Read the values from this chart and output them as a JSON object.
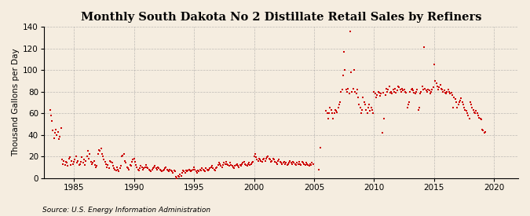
{
  "title": "Monthly South Dakota No 2 Distillate Retail Sales by Refiners",
  "ylabel": "Thousand Gallons per Day",
  "source": "Source: U.S. Energy Information Administration",
  "xlim": [
    1982.5,
    2022.0
  ],
  "ylim": [
    0,
    140
  ],
  "yticks": [
    0,
    20,
    40,
    60,
    80,
    100,
    120,
    140
  ],
  "xticks": [
    1985,
    1990,
    1995,
    2000,
    2005,
    2010,
    2015,
    2020
  ],
  "marker_color": "#cc0000",
  "marker_size": 4,
  "background_color": "#f5ede0",
  "grid_color": "#999999",
  "title_fontsize": 10.5,
  "label_fontsize": 7.5,
  "tick_fontsize": 7.5,
  "data_points": [
    [
      1983.0,
      63
    ],
    [
      1983.08,
      58
    ],
    [
      1983.17,
      53
    ],
    [
      1983.25,
      44
    ],
    [
      1983.33,
      37
    ],
    [
      1983.42,
      42
    ],
    [
      1983.5,
      45
    ],
    [
      1983.58,
      40
    ],
    [
      1983.67,
      43
    ],
    [
      1983.75,
      36
    ],
    [
      1983.83,
      38
    ],
    [
      1983.92,
      46
    ],
    [
      1984.0,
      17
    ],
    [
      1984.08,
      13
    ],
    [
      1984.17,
      16
    ],
    [
      1984.25,
      12
    ],
    [
      1984.33,
      15
    ],
    [
      1984.42,
      14
    ],
    [
      1984.5,
      11
    ],
    [
      1984.58,
      18
    ],
    [
      1984.67,
      19
    ],
    [
      1984.75,
      12
    ],
    [
      1984.83,
      16
    ],
    [
      1984.92,
      13
    ],
    [
      1985.0,
      15
    ],
    [
      1985.08,
      17
    ],
    [
      1985.17,
      20
    ],
    [
      1985.25,
      14
    ],
    [
      1985.33,
      16
    ],
    [
      1985.42,
      12
    ],
    [
      1985.5,
      13
    ],
    [
      1985.58,
      15
    ],
    [
      1985.67,
      19
    ],
    [
      1985.75,
      14
    ],
    [
      1985.83,
      17
    ],
    [
      1985.92,
      12
    ],
    [
      1986.0,
      16
    ],
    [
      1986.08,
      20
    ],
    [
      1986.17,
      25
    ],
    [
      1986.25,
      18
    ],
    [
      1986.33,
      22
    ],
    [
      1986.42,
      15
    ],
    [
      1986.5,
      13
    ],
    [
      1986.58,
      14
    ],
    [
      1986.67,
      16
    ],
    [
      1986.75,
      12
    ],
    [
      1986.83,
      10
    ],
    [
      1986.92,
      11
    ],
    [
      1987.0,
      22
    ],
    [
      1987.08,
      26
    ],
    [
      1987.17,
      25
    ],
    [
      1987.25,
      27
    ],
    [
      1987.33,
      22
    ],
    [
      1987.42,
      20
    ],
    [
      1987.5,
      17
    ],
    [
      1987.58,
      15
    ],
    [
      1987.67,
      13
    ],
    [
      1987.75,
      10
    ],
    [
      1987.83,
      12
    ],
    [
      1987.92,
      9
    ],
    [
      1988.0,
      16
    ],
    [
      1988.08,
      15
    ],
    [
      1988.17,
      14
    ],
    [
      1988.25,
      11
    ],
    [
      1988.33,
      9
    ],
    [
      1988.42,
      8
    ],
    [
      1988.5,
      7
    ],
    [
      1988.58,
      10
    ],
    [
      1988.67,
      8
    ],
    [
      1988.75,
      6
    ],
    [
      1988.83,
      9
    ],
    [
      1988.92,
      11
    ],
    [
      1989.0,
      20
    ],
    [
      1989.08,
      21
    ],
    [
      1989.17,
      22
    ],
    [
      1989.25,
      16
    ],
    [
      1989.33,
      14
    ],
    [
      1989.42,
      10
    ],
    [
      1989.5,
      9
    ],
    [
      1989.58,
      8
    ],
    [
      1989.67,
      12
    ],
    [
      1989.75,
      11
    ],
    [
      1989.83,
      15
    ],
    [
      1989.92,
      17
    ],
    [
      1990.0,
      18
    ],
    [
      1990.08,
      15
    ],
    [
      1990.17,
      12
    ],
    [
      1990.25,
      10
    ],
    [
      1990.33,
      8
    ],
    [
      1990.42,
      7
    ],
    [
      1990.5,
      9
    ],
    [
      1990.58,
      11
    ],
    [
      1990.67,
      10
    ],
    [
      1990.75,
      8
    ],
    [
      1990.83,
      9
    ],
    [
      1990.92,
      10
    ],
    [
      1991.0,
      12
    ],
    [
      1991.08,
      10
    ],
    [
      1991.17,
      9
    ],
    [
      1991.25,
      8
    ],
    [
      1991.33,
      7
    ],
    [
      1991.42,
      6
    ],
    [
      1991.5,
      8
    ],
    [
      1991.58,
      9
    ],
    [
      1991.67,
      10
    ],
    [
      1991.75,
      11
    ],
    [
      1991.83,
      9
    ],
    [
      1991.92,
      8
    ],
    [
      1992.0,
      10
    ],
    [
      1992.08,
      9
    ],
    [
      1992.17,
      8
    ],
    [
      1992.25,
      7
    ],
    [
      1992.33,
      6
    ],
    [
      1992.42,
      7
    ],
    [
      1992.5,
      8
    ],
    [
      1992.58,
      9
    ],
    [
      1992.67,
      10
    ],
    [
      1992.75,
      8
    ],
    [
      1992.83,
      7
    ],
    [
      1992.92,
      6
    ],
    [
      1993.0,
      8
    ],
    [
      1993.08,
      7
    ],
    [
      1993.17,
      6
    ],
    [
      1993.25,
      5
    ],
    [
      1993.33,
      7
    ],
    [
      1993.42,
      6
    ],
    [
      1993.5,
      1
    ],
    [
      1993.58,
      0
    ],
    [
      1993.67,
      2
    ],
    [
      1993.75,
      1
    ],
    [
      1993.83,
      3
    ],
    [
      1993.92,
      2
    ],
    [
      1994.0,
      5
    ],
    [
      1994.08,
      7
    ],
    [
      1994.17,
      6
    ],
    [
      1994.25,
      5
    ],
    [
      1994.33,
      7
    ],
    [
      1994.42,
      6
    ],
    [
      1994.5,
      7
    ],
    [
      1994.58,
      8
    ],
    [
      1994.67,
      7
    ],
    [
      1994.75,
      6
    ],
    [
      1994.83,
      7
    ],
    [
      1994.92,
      8
    ],
    [
      1995.0,
      10
    ],
    [
      1995.08,
      8
    ],
    [
      1995.17,
      6
    ],
    [
      1995.25,
      5
    ],
    [
      1995.33,
      7
    ],
    [
      1995.42,
      6
    ],
    [
      1995.5,
      8
    ],
    [
      1995.58,
      7
    ],
    [
      1995.67,
      9
    ],
    [
      1995.75,
      8
    ],
    [
      1995.83,
      7
    ],
    [
      1995.92,
      6
    ],
    [
      1996.0,
      9
    ],
    [
      1996.08,
      8
    ],
    [
      1996.17,
      7
    ],
    [
      1996.25,
      8
    ],
    [
      1996.33,
      9
    ],
    [
      1996.42,
      10
    ],
    [
      1996.5,
      11
    ],
    [
      1996.58,
      9
    ],
    [
      1996.67,
      8
    ],
    [
      1996.75,
      7
    ],
    [
      1996.83,
      9
    ],
    [
      1996.92,
      10
    ],
    [
      1997.0,
      12
    ],
    [
      1997.08,
      14
    ],
    [
      1997.17,
      13
    ],
    [
      1997.25,
      11
    ],
    [
      1997.33,
      10
    ],
    [
      1997.42,
      12
    ],
    [
      1997.5,
      14
    ],
    [
      1997.58,
      13
    ],
    [
      1997.67,
      15
    ],
    [
      1997.75,
      13
    ],
    [
      1997.83,
      12
    ],
    [
      1997.92,
      11
    ],
    [
      1998.0,
      14
    ],
    [
      1998.08,
      12
    ],
    [
      1998.17,
      11
    ],
    [
      1998.25,
      10
    ],
    [
      1998.33,
      9
    ],
    [
      1998.42,
      11
    ],
    [
      1998.5,
      12
    ],
    [
      1998.58,
      13
    ],
    [
      1998.67,
      11
    ],
    [
      1998.75,
      10
    ],
    [
      1998.83,
      12
    ],
    [
      1998.92,
      11
    ],
    [
      1999.0,
      13
    ],
    [
      1999.08,
      14
    ],
    [
      1999.17,
      15
    ],
    [
      1999.25,
      13
    ],
    [
      1999.33,
      12
    ],
    [
      1999.42,
      11
    ],
    [
      1999.5,
      13
    ],
    [
      1999.58,
      14
    ],
    [
      1999.67,
      12
    ],
    [
      1999.75,
      13
    ],
    [
      1999.83,
      14
    ],
    [
      1999.92,
      15
    ],
    [
      2000.0,
      20
    ],
    [
      2000.08,
      22
    ],
    [
      2000.17,
      19
    ],
    [
      2000.25,
      17
    ],
    [
      2000.33,
      16
    ],
    [
      2000.42,
      18
    ],
    [
      2000.5,
      17
    ],
    [
      2000.58,
      16
    ],
    [
      2000.67,
      15
    ],
    [
      2000.75,
      17
    ],
    [
      2000.83,
      18
    ],
    [
      2000.92,
      16
    ],
    [
      2001.0,
      18
    ],
    [
      2001.08,
      19
    ],
    [
      2001.17,
      20
    ],
    [
      2001.25,
      18
    ],
    [
      2001.33,
      17
    ],
    [
      2001.42,
      15
    ],
    [
      2001.5,
      16
    ],
    [
      2001.58,
      18
    ],
    [
      2001.67,
      17
    ],
    [
      2001.75,
      15
    ],
    [
      2001.83,
      14
    ],
    [
      2001.92,
      13
    ],
    [
      2002.0,
      16
    ],
    [
      2002.08,
      17
    ],
    [
      2002.17,
      15
    ],
    [
      2002.25,
      14
    ],
    [
      2002.33,
      13
    ],
    [
      2002.42,
      14
    ],
    [
      2002.5,
      15
    ],
    [
      2002.58,
      13
    ],
    [
      2002.67,
      14
    ],
    [
      2002.75,
      12
    ],
    [
      2002.83,
      13
    ],
    [
      2002.92,
      14
    ],
    [
      2003.0,
      16
    ],
    [
      2003.08,
      14
    ],
    [
      2003.17,
      13
    ],
    [
      2003.25,
      15
    ],
    [
      2003.33,
      14
    ],
    [
      2003.42,
      13
    ],
    [
      2003.5,
      12
    ],
    [
      2003.58,
      14
    ],
    [
      2003.67,
      13
    ],
    [
      2003.75,
      15
    ],
    [
      2003.83,
      13
    ],
    [
      2003.92,
      12
    ],
    [
      2004.0,
      15
    ],
    [
      2004.08,
      14
    ],
    [
      2004.17,
      13
    ],
    [
      2004.25,
      12
    ],
    [
      2004.33,
      14
    ],
    [
      2004.42,
      13
    ],
    [
      2004.5,
      12
    ],
    [
      2004.58,
      11
    ],
    [
      2004.67,
      13
    ],
    [
      2004.75,
      12
    ],
    [
      2004.83,
      14
    ],
    [
      2004.92,
      13
    ],
    [
      2005.42,
      8
    ],
    [
      2005.5,
      28
    ],
    [
      2006.0,
      62
    ],
    [
      2006.08,
      60
    ],
    [
      2006.17,
      55
    ],
    [
      2006.25,
      60
    ],
    [
      2006.33,
      65
    ],
    [
      2006.42,
      63
    ],
    [
      2006.5,
      60
    ],
    [
      2006.58,
      55
    ],
    [
      2006.67,
      60
    ],
    [
      2006.75,
      63
    ],
    [
      2006.83,
      62
    ],
    [
      2006.92,
      61
    ],
    [
      2007.0,
      65
    ],
    [
      2007.08,
      68
    ],
    [
      2007.17,
      70
    ],
    [
      2007.25,
      80
    ],
    [
      2007.33,
      82
    ],
    [
      2007.42,
      95
    ],
    [
      2007.5,
      117
    ],
    [
      2007.58,
      100
    ],
    [
      2007.67,
      82
    ],
    [
      2007.75,
      80
    ],
    [
      2007.83,
      83
    ],
    [
      2007.92,
      78
    ],
    [
      2008.0,
      136
    ],
    [
      2008.08,
      98
    ],
    [
      2008.17,
      80
    ],
    [
      2008.25,
      83
    ],
    [
      2008.33,
      100
    ],
    [
      2008.42,
      80
    ],
    [
      2008.5,
      78
    ],
    [
      2008.58,
      82
    ],
    [
      2008.67,
      75
    ],
    [
      2008.75,
      68
    ],
    [
      2008.83,
      65
    ],
    [
      2008.92,
      60
    ],
    [
      2009.0,
      63
    ],
    [
      2009.08,
      75
    ],
    [
      2009.17,
      70
    ],
    [
      2009.25,
      68
    ],
    [
      2009.33,
      63
    ],
    [
      2009.42,
      60
    ],
    [
      2009.5,
      65
    ],
    [
      2009.58,
      68
    ],
    [
      2009.67,
      62
    ],
    [
      2009.75,
      65
    ],
    [
      2009.83,
      63
    ],
    [
      2009.92,
      60
    ],
    [
      2010.0,
      80
    ],
    [
      2010.08,
      78
    ],
    [
      2010.17,
      75
    ],
    [
      2010.25,
      77
    ],
    [
      2010.33,
      80
    ],
    [
      2010.42,
      79
    ],
    [
      2010.5,
      76
    ],
    [
      2010.58,
      78
    ],
    [
      2010.67,
      42
    ],
    [
      2010.75,
      79
    ],
    [
      2010.83,
      55
    ],
    [
      2010.92,
      77
    ],
    [
      2011.0,
      83
    ],
    [
      2011.08,
      80
    ],
    [
      2011.17,
      82
    ],
    [
      2011.25,
      85
    ],
    [
      2011.33,
      79
    ],
    [
      2011.42,
      80
    ],
    [
      2011.5,
      78
    ],
    [
      2011.58,
      82
    ],
    [
      2011.67,
      80
    ],
    [
      2011.75,
      83
    ],
    [
      2011.83,
      79
    ],
    [
      2011.92,
      81
    ],
    [
      2012.0,
      85
    ],
    [
      2012.08,
      84
    ],
    [
      2012.17,
      82
    ],
    [
      2012.25,
      80
    ],
    [
      2012.33,
      83
    ],
    [
      2012.42,
      81
    ],
    [
      2012.5,
      82
    ],
    [
      2012.58,
      80
    ],
    [
      2012.67,
      79
    ],
    [
      2012.75,
      65
    ],
    [
      2012.83,
      68
    ],
    [
      2012.92,
      70
    ],
    [
      2013.0,
      80
    ],
    [
      2013.08,
      82
    ],
    [
      2013.17,
      83
    ],
    [
      2013.25,
      81
    ],
    [
      2013.33,
      79
    ],
    [
      2013.42,
      78
    ],
    [
      2013.5,
      80
    ],
    [
      2013.58,
      82
    ],
    [
      2013.67,
      63
    ],
    [
      2013.75,
      65
    ],
    [
      2013.83,
      78
    ],
    [
      2013.92,
      80
    ],
    [
      2014.0,
      85
    ],
    [
      2014.08,
      82
    ],
    [
      2014.17,
      121
    ],
    [
      2014.25,
      83
    ],
    [
      2014.33,
      81
    ],
    [
      2014.42,
      80
    ],
    [
      2014.5,
      82
    ],
    [
      2014.58,
      81
    ],
    [
      2014.67,
      78
    ],
    [
      2014.75,
      80
    ],
    [
      2014.83,
      82
    ],
    [
      2014.92,
      84
    ],
    [
      2015.0,
      105
    ],
    [
      2015.08,
      90
    ],
    [
      2015.17,
      88
    ],
    [
      2015.25,
      85
    ],
    [
      2015.33,
      82
    ],
    [
      2015.42,
      84
    ],
    [
      2015.5,
      86
    ],
    [
      2015.58,
      83
    ],
    [
      2015.67,
      82
    ],
    [
      2015.75,
      80
    ],
    [
      2015.83,
      81
    ],
    [
      2015.92,
      79
    ],
    [
      2016.0,
      78
    ],
    [
      2016.08,
      80
    ],
    [
      2016.17,
      82
    ],
    [
      2016.25,
      80
    ],
    [
      2016.33,
      78
    ],
    [
      2016.42,
      79
    ],
    [
      2016.5,
      77
    ],
    [
      2016.58,
      65
    ],
    [
      2016.67,
      75
    ],
    [
      2016.75,
      73
    ],
    [
      2016.83,
      70
    ],
    [
      2016.92,
      65
    ],
    [
      2017.0,
      68
    ],
    [
      2017.08,
      70
    ],
    [
      2017.17,
      72
    ],
    [
      2017.25,
      74
    ],
    [
      2017.33,
      70
    ],
    [
      2017.42,
      68
    ],
    [
      2017.5,
      65
    ],
    [
      2017.58,
      63
    ],
    [
      2017.67,
      62
    ],
    [
      2017.75,
      60
    ],
    [
      2017.83,
      58
    ],
    [
      2017.92,
      55
    ],
    [
      2018.0,
      70
    ],
    [
      2018.08,
      68
    ],
    [
      2018.17,
      65
    ],
    [
      2018.25,
      63
    ],
    [
      2018.33,
      61
    ],
    [
      2018.42,
      60
    ],
    [
      2018.5,
      62
    ],
    [
      2018.58,
      60
    ],
    [
      2018.67,
      58
    ],
    [
      2018.75,
      56
    ],
    [
      2018.83,
      55
    ],
    [
      2018.92,
      54
    ],
    [
      2019.0,
      45
    ],
    [
      2019.08,
      44
    ],
    [
      2019.17,
      42
    ],
    [
      2019.25,
      43
    ]
  ]
}
